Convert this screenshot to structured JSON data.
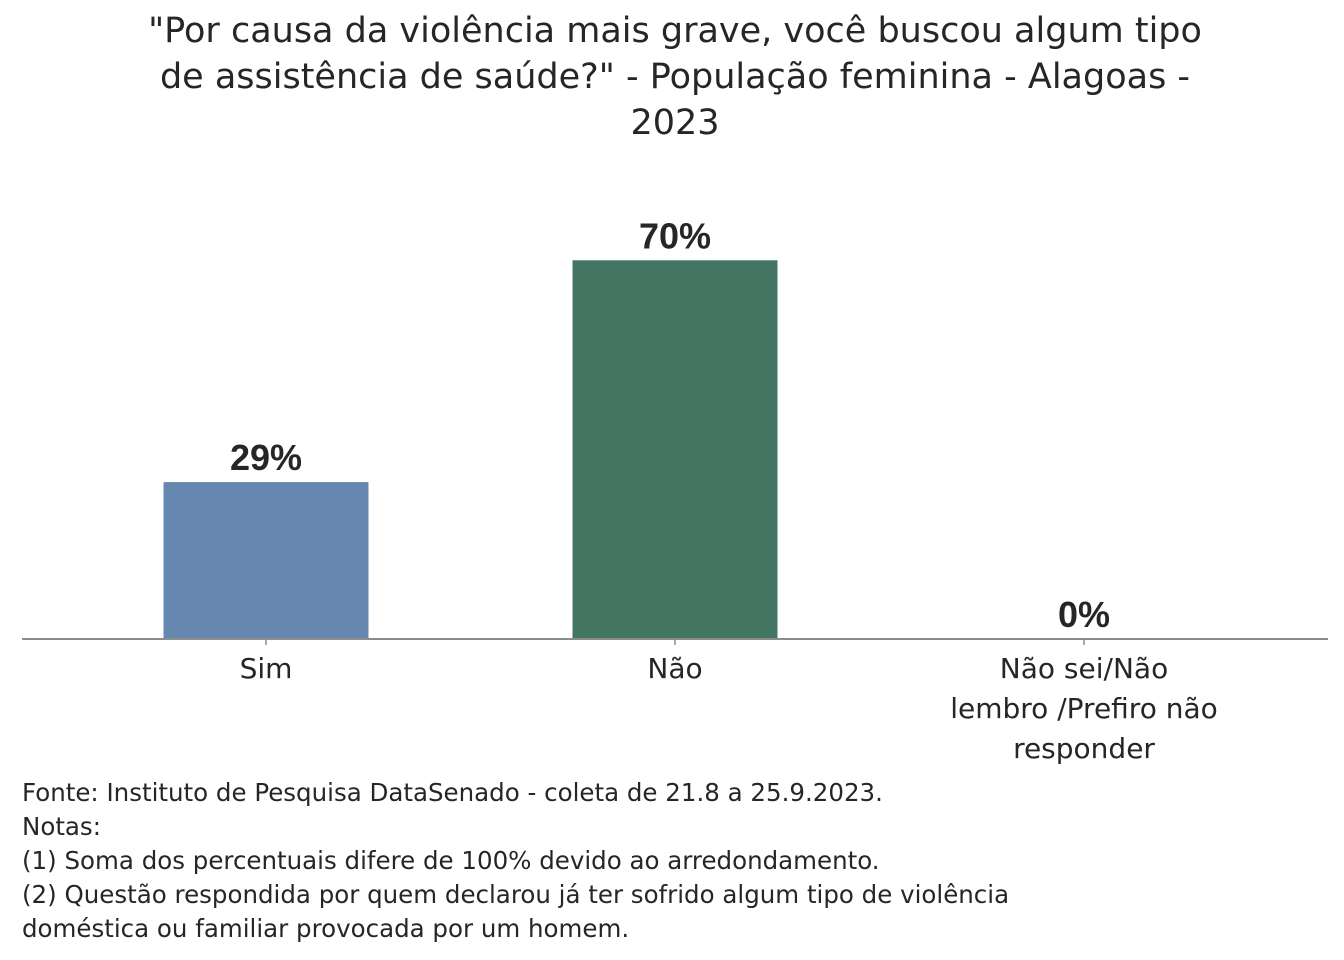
{
  "chart_data": {
    "type": "bar",
    "title": "\"Por causa da violência mais grave, você buscou algum tipo de assistência de saúde?\" - População feminina - Alagoas - 2023",
    "title_lines": [
      "\"Por causa da violência mais grave, você buscou algum tipo",
      "de assistência de saúde?\" - População feminina - Alagoas -",
      "2023"
    ],
    "categories": [
      "Sim",
      "Não",
      "Não sei/Não lembro /Prefiro não responder"
    ],
    "category_lines": [
      [
        "Sim"
      ],
      [
        "Não"
      ],
      [
        "Não sei/Não",
        "lembro /Prefiro não",
        "responder"
      ]
    ],
    "values": [
      29,
      70,
      0
    ],
    "value_labels": [
      "29%",
      "70%",
      "0%"
    ],
    "colors": [
      "#6688b0",
      "#457563",
      "#8a8a8a"
    ],
    "ylim": [
      0,
      100
    ],
    "xlabel": "",
    "ylabel": "",
    "grid": false,
    "legend": "none"
  },
  "notes": {
    "source": "Fonte: Instituto de Pesquisa DataSenado - coleta de 21.8 a 25.9.2023.",
    "heading": "Notas:",
    "note1": "(1) Soma dos percentuais difere de 100% devido ao arredondamento.",
    "note2_line1": "(2) Questão respondida por quem declarou já ter sofrido algum tipo de violência",
    "note2_line2": "doméstica ou familiar provocada por um homem."
  },
  "colors": {
    "axis": "#8c8c8c",
    "text": "#262626"
  }
}
